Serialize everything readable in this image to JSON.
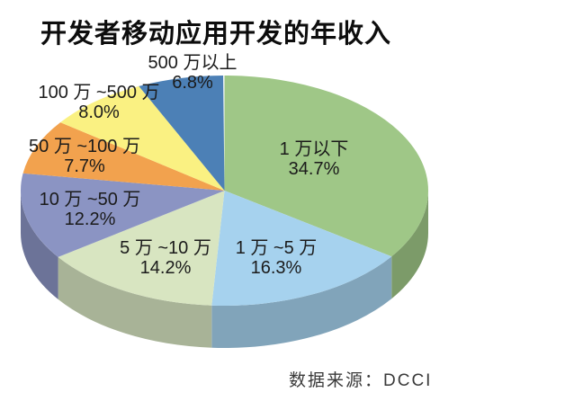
{
  "page": {
    "background": "#ffffff"
  },
  "title": "开发者移动应用开发的年收入",
  "source": "数据来源：DCCI",
  "chart_data": {
    "type": "pie",
    "style": "3d-pie",
    "title": "开发者移动应用开发的年收入",
    "source": "数据来源：DCCI",
    "start_angle_deg": 0,
    "direction": "clockwise",
    "legend": "none",
    "slices": [
      {
        "label": "1 万以下",
        "value": 34.7,
        "percent_text": "34.7%",
        "color": "#9FC787"
      },
      {
        "label": "1 万 ~5 万",
        "value": 16.3,
        "percent_text": "16.3%",
        "color": "#A6D2EE"
      },
      {
        "label": "5 万 ~10 万",
        "value": 14.2,
        "percent_text": "14.2%",
        "color": "#D8E5C1"
      },
      {
        "label": "10 万 ~50 万",
        "value": 12.2,
        "percent_text": "12.2%",
        "color": "#8B94C3"
      },
      {
        "label": "50 万 ~100 万",
        "value": 7.7,
        "percent_text": "7.7%",
        "color": "#F2A24E"
      },
      {
        "label": "100 万 ~500 万",
        "value": 8.0,
        "percent_text": "8.0%",
        "color": "#FAF182"
      },
      {
        "label": "500 万以上",
        "value": 6.8,
        "percent_text": "6.8%",
        "color": "#4C80B6"
      }
    ]
  }
}
